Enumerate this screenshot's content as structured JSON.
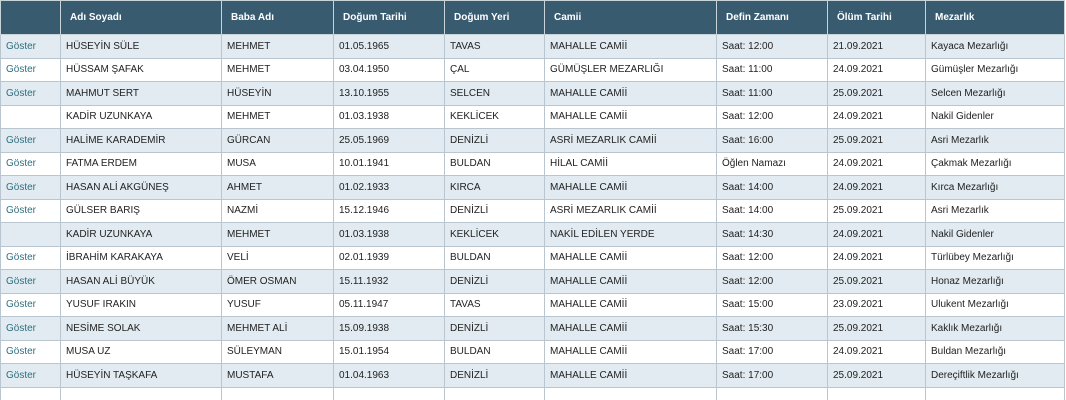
{
  "table": {
    "headers": [
      "Adı Soyadı",
      "Baba Adı",
      "Doğum Tarihi",
      "Doğum Yeri",
      "Camii",
      "Defin Zamanı",
      "Ölüm Tarihi",
      "Mezarlık"
    ],
    "rows": [
      {
        "action": "Göster",
        "cells": [
          "HÜSEYİN SÜLE",
          "MEHMET",
          "01.05.1965",
          "TAVAS",
          "MAHALLE CAMİİ",
          "Saat: 12:00",
          "21.09.2021",
          "Kayaca Mezarlığı"
        ]
      },
      {
        "action": "Göster",
        "cells": [
          "HÜSSAM ŞAFAK",
          "MEHMET",
          "03.04.1950",
          "ÇAL",
          "GÜMÜŞLER MEZARLIĞI",
          "Saat: 11:00",
          "24.09.2021",
          "Gümüşler Mezarlığı"
        ]
      },
      {
        "action": "Göster",
        "cells": [
          "MAHMUT SERT",
          "HÜSEYİN",
          "13.10.1955",
          "SELCEN",
          "MAHALLE CAMİİ",
          "Saat: 11:00",
          "25.09.2021",
          "Selcen Mezarlığı"
        ]
      },
      {
        "cells": [
          "KADİR UZUNKAYA",
          "MEHMET",
          "01.03.1938",
          "KEKLİCEK",
          "MAHALLE CAMİİ",
          "Saat: 12:00",
          "24.09.2021",
          "Nakil Gidenler"
        ]
      },
      {
        "action": "Göster",
        "cells": [
          "HALİME KARADEMİR",
          "GÜRCAN",
          "25.05.1969",
          "DENİZLİ",
          "ASRİ MEZARLIK CAMİİ",
          "Saat: 16:00",
          "25.09.2021",
          "Asri Mezarlık"
        ]
      },
      {
        "action": "Göster",
        "cells": [
          "FATMA ERDEM",
          "MUSA",
          "10.01.1941",
          "BULDAN",
          "HİLAL CAMİİ",
          "Öğlen Namazı",
          "24.09.2021",
          "Çakmak Mezarlığı"
        ]
      },
      {
        "action": "Göster",
        "cells": [
          "HASAN ALİ AKGÜNEŞ",
          "AHMET",
          "01.02.1933",
          "KIRCA",
          "MAHALLE CAMİİ",
          "Saat: 14:00",
          "24.09.2021",
          "Kırca Mezarlığı"
        ]
      },
      {
        "action": "Göster",
        "cells": [
          "GÜLSER BARIŞ",
          "NAZMİ",
          "15.12.1946",
          "DENİZLİ",
          "ASRİ MEZARLIK CAMİİ",
          "Saat: 14:00",
          "25.09.2021",
          "Asri Mezarlık"
        ]
      },
      {
        "cells": [
          "KADİR UZUNKAYA",
          "MEHMET",
          "01.03.1938",
          "KEKLİCEK",
          "NAKİL EDİLEN YERDE",
          "Saat: 14:30",
          "24.09.2021",
          "Nakil Gidenler"
        ]
      },
      {
        "action": "Göster",
        "cells": [
          "İBRAHİM KARAKAYA",
          "VELİ",
          "02.01.1939",
          "BULDAN",
          "MAHALLE CAMİİ",
          "Saat: 12:00",
          "24.09.2021",
          "Türlübey Mezarlığı"
        ]
      },
      {
        "action": "Göster",
        "cells": [
          "HASAN ALİ BÜYÜK",
          "ÖMER OSMAN",
          "15.11.1932",
          "DENİZLİ",
          "MAHALLE CAMİİ",
          "Saat: 12:00",
          "25.09.2021",
          "Honaz Mezarlığı"
        ]
      },
      {
        "action": "Göster",
        "cells": [
          "YUSUF IRAKIN",
          "YUSUF",
          "05.11.1947",
          "TAVAS",
          "MAHALLE CAMİİ",
          "Saat: 15:00",
          "23.09.2021",
          "Ulukent Mezarlığı"
        ]
      },
      {
        "action": "Göster",
        "cells": [
          "NESİME SOLAK",
          "MEHMET ALİ",
          "15.09.1938",
          "DENİZLİ",
          "MAHALLE CAMİİ",
          "Saat: 15:30",
          "25.09.2021",
          "Kaklık Mezarlığı"
        ]
      },
      {
        "action": "Göster",
        "cells": [
          "MUSA UZ",
          "SÜLEYMAN",
          "15.01.1954",
          "BULDAN",
          "MAHALLE CAMİİ",
          "Saat: 17:00",
          "24.09.2021",
          "Buldan Mezarlığı"
        ]
      },
      {
        "action": "Göster",
        "cells": [
          "HÜSEYİN TAŞKAFA",
          "MUSTAFA",
          "01.04.1963",
          "DENİZLİ",
          "MAHALLE CAMİİ",
          "Saat: 17:00",
          "25.09.2021",
          "Dereçiftlik Mezarlığı"
        ]
      }
    ]
  }
}
